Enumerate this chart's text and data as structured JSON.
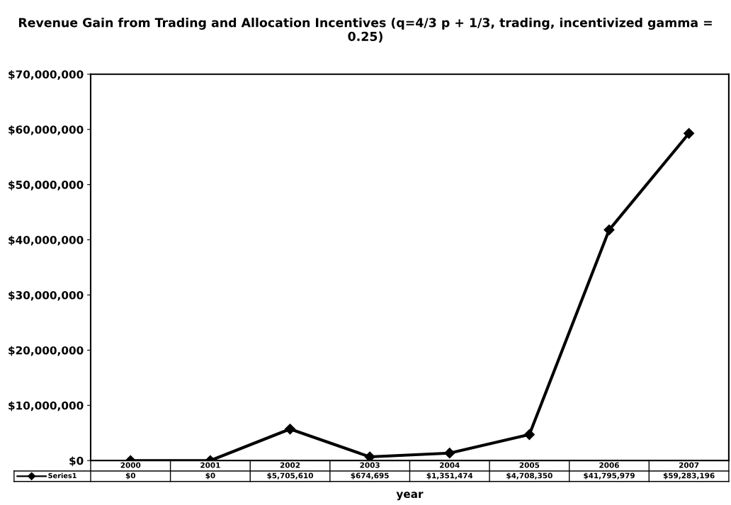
{
  "chart_data": {
    "type": "line",
    "title": "Revenue Gain from Trading and Allocation Incentives (q=4/3 p + 1/3, trading, incentivized gamma = 0.25)",
    "xlabel": "year",
    "categories": [
      "2000",
      "2001",
      "2002",
      "2003",
      "2004",
      "2005",
      "2006",
      "2007"
    ],
    "series": [
      {
        "name": "Series1",
        "color": "#000000",
        "values": [
          0,
          0,
          5705610,
          674695,
          1351474,
          4708350,
          41795979,
          59283196
        ],
        "value_labels": [
          "$0",
          "$0",
          "$5,705,610",
          "$674,695",
          "$1,351,474",
          "$4,708,350",
          "$41,795,979",
          "$59,283,196"
        ]
      }
    ],
    "ylim": [
      0,
      70000000
    ],
    "yticks": [
      {
        "value": 0,
        "label": "$0"
      },
      {
        "value": 10000000,
        "label": "$10,000,000"
      },
      {
        "value": 20000000,
        "label": "$20,000,000"
      },
      {
        "value": 30000000,
        "label": "$30,000,000"
      },
      {
        "value": 40000000,
        "label": "$40,000,000"
      },
      {
        "value": 50000000,
        "label": "$50,000,000"
      },
      {
        "value": 60000000,
        "label": "$60,000,000"
      },
      {
        "value": 70000000,
        "label": "$70,000,000"
      }
    ],
    "grid": false,
    "marker": "diamond",
    "line_style": "solid",
    "legend": "bottom"
  }
}
